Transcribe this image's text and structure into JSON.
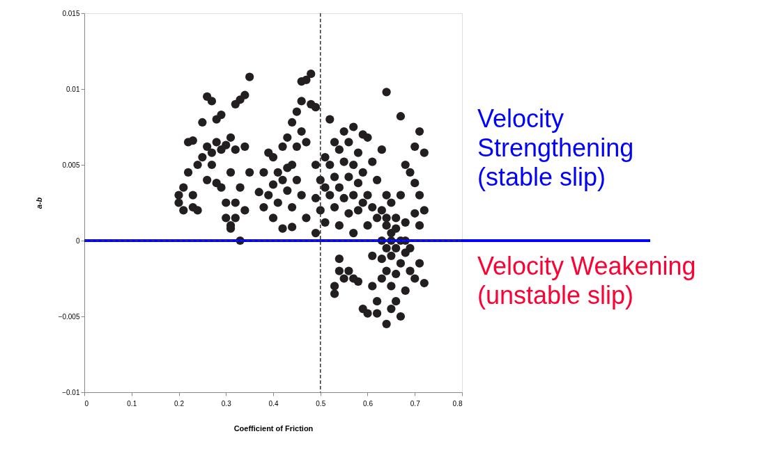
{
  "chart_data": {
    "type": "scatter",
    "xlabel": "Coefficient of Friction",
    "ylabel": "a-b",
    "xlim": [
      0,
      0.8
    ],
    "xticks": [
      0,
      0.1,
      0.2,
      0.3,
      0.4,
      0.5,
      0.6,
      0.7,
      0.8
    ],
    "ylim": [
      -0.01,
      0.015
    ],
    "yticks": [
      -0.01,
      -0.005,
      0,
      0.005,
      0.01,
      0.015
    ],
    "grid": false,
    "marker": "circle",
    "ref_lines": [
      {
        "axis": "x",
        "value": 0.5,
        "color": "#333333",
        "line_style": "dashed"
      },
      {
        "axis": "y",
        "value": 0,
        "color": "#0000ff",
        "line_style": "solid"
      },
      {
        "axis": "y",
        "value": 0,
        "color": "#333333",
        "line_style": "dashed"
      }
    ],
    "annotations": [
      "Velocity\nStrengthening\n(stable slip)",
      "Velocity Weakening\n(unstable slip)"
    ],
    "series": [
      {
        "color": "#231f20",
        "x": [
          0.2,
          0.2,
          0.21,
          0.21,
          0.22,
          0.22,
          0.23,
          0.23,
          0.23,
          0.24,
          0.24,
          0.25,
          0.25,
          0.26,
          0.26,
          0.26,
          0.27,
          0.27,
          0.27,
          0.28,
          0.28,
          0.28,
          0.29,
          0.29,
          0.29,
          0.3,
          0.3,
          0.3,
          0.31,
          0.31,
          0.31,
          0.32,
          0.32,
          0.32,
          0.33,
          0.33,
          0.33,
          0.34,
          0.34,
          0.35,
          0.35,
          0.34,
          0.31,
          0.32,
          0.37,
          0.38,
          0.38,
          0.39,
          0.39,
          0.4,
          0.4,
          0.4,
          0.41,
          0.41,
          0.42,
          0.42,
          0.42,
          0.43,
          0.43,
          0.43,
          0.44,
          0.44,
          0.44,
          0.44,
          0.45,
          0.45,
          0.45,
          0.46,
          0.46,
          0.46,
          0.46,
          0.47,
          0.47,
          0.47,
          0.48,
          0.48,
          0.49,
          0.49,
          0.49,
          0.49,
          0.5,
          0.5,
          0.51,
          0.51,
          0.51,
          0.52,
          0.52,
          0.52,
          0.53,
          0.53,
          0.53,
          0.54,
          0.54,
          0.54,
          0.55,
          0.55,
          0.55,
          0.56,
          0.56,
          0.56,
          0.57,
          0.57,
          0.57,
          0.57,
          0.58,
          0.58,
          0.58,
          0.59,
          0.59,
          0.59,
          0.6,
          0.6,
          0.6,
          0.61,
          0.61,
          0.62,
          0.62,
          0.63,
          0.63,
          0.64,
          0.64,
          0.64,
          0.65,
          0.65,
          0.66,
          0.67,
          0.67,
          0.68,
          0.69,
          0.7,
          0.7,
          0.7,
          0.71,
          0.71,
          0.72,
          0.72,
          0.71,
          0.53,
          0.53,
          0.54,
          0.54,
          0.55,
          0.56,
          0.57,
          0.58,
          0.59,
          0.6,
          0.61,
          0.62,
          0.62,
          0.63,
          0.64,
          0.64,
          0.64,
          0.65,
          0.65,
          0.65,
          0.66,
          0.66,
          0.66,
          0.67,
          0.67,
          0.68,
          0.68,
          0.69,
          0.69,
          0.7,
          0.71,
          0.72,
          0.63,
          0.61,
          0.63,
          0.64,
          0.65,
          0.66,
          0.67,
          0.68,
          0.68
        ],
        "values": [
          0.003,
          0.0025,
          0.0035,
          0.002,
          0.0045,
          0.0065,
          0.0066,
          0.003,
          0.0022,
          0.005,
          0.002,
          0.0055,
          0.0078,
          0.0095,
          0.0062,
          0.004,
          0.0092,
          0.0058,
          0.005,
          0.008,
          0.0065,
          0.0038,
          0.0083,
          0.006,
          0.0035,
          0.0063,
          0.0025,
          0.0015,
          0.0068,
          0.0045,
          0.001,
          0.009,
          0.006,
          0.0015,
          0.0093,
          0.0035,
          0.0,
          0.0096,
          0.0062,
          0.0108,
          0.0045,
          0.002,
          0.0008,
          0.0025,
          0.0032,
          0.0045,
          0.0022,
          0.0058,
          0.003,
          0.0055,
          0.0037,
          0.0015,
          0.0045,
          0.0025,
          0.0062,
          0.004,
          0.0008,
          0.0068,
          0.0048,
          0.0033,
          0.0078,
          0.005,
          0.0022,
          0.0009,
          0.0085,
          0.0062,
          0.004,
          0.0105,
          0.0092,
          0.0072,
          0.003,
          0.0106,
          0.0065,
          0.0015,
          0.011,
          0.009,
          0.0088,
          0.005,
          0.0028,
          0.0005,
          0.004,
          0.002,
          0.0055,
          0.0035,
          0.0012,
          0.008,
          0.005,
          0.003,
          0.0065,
          0.0042,
          0.0022,
          0.006,
          0.0035,
          0.001,
          0.0072,
          0.0052,
          0.0028,
          0.0065,
          0.0042,
          0.0018,
          0.0075,
          0.005,
          0.003,
          0.0005,
          0.0058,
          0.0038,
          0.002,
          0.007,
          0.0045,
          0.0025,
          0.0068,
          0.003,
          0.001,
          0.0052,
          0.0022,
          0.004,
          0.0015,
          0.006,
          0.002,
          0.0098,
          0.003,
          0.001,
          0.0025,
          0.0005,
          0.0015,
          0.0082,
          0.003,
          0.005,
          0.0045,
          0.0062,
          0.0038,
          0.0018,
          0.0072,
          0.003,
          0.0058,
          0.002,
          0.001,
          -0.0035,
          -0.003,
          -0.0012,
          -0.002,
          -0.0025,
          -0.002,
          -0.0025,
          -0.0027,
          -0.0045,
          -0.0048,
          -0.003,
          -0.004,
          -0.0048,
          -0.0012,
          -0.0055,
          -0.002,
          -0.0005,
          -0.0045,
          -0.003,
          -0.001,
          -0.004,
          -0.0022,
          -0.0005,
          -0.005,
          -0.0015,
          -0.0033,
          -0.0008,
          -0.002,
          -0.0005,
          -0.0025,
          -0.0015,
          -0.0028,
          -0.0025,
          -0.001,
          0.0,
          0.0015,
          0.0,
          0.0008,
          0.0,
          0.0012,
          0.0
        ]
      }
    ]
  }
}
